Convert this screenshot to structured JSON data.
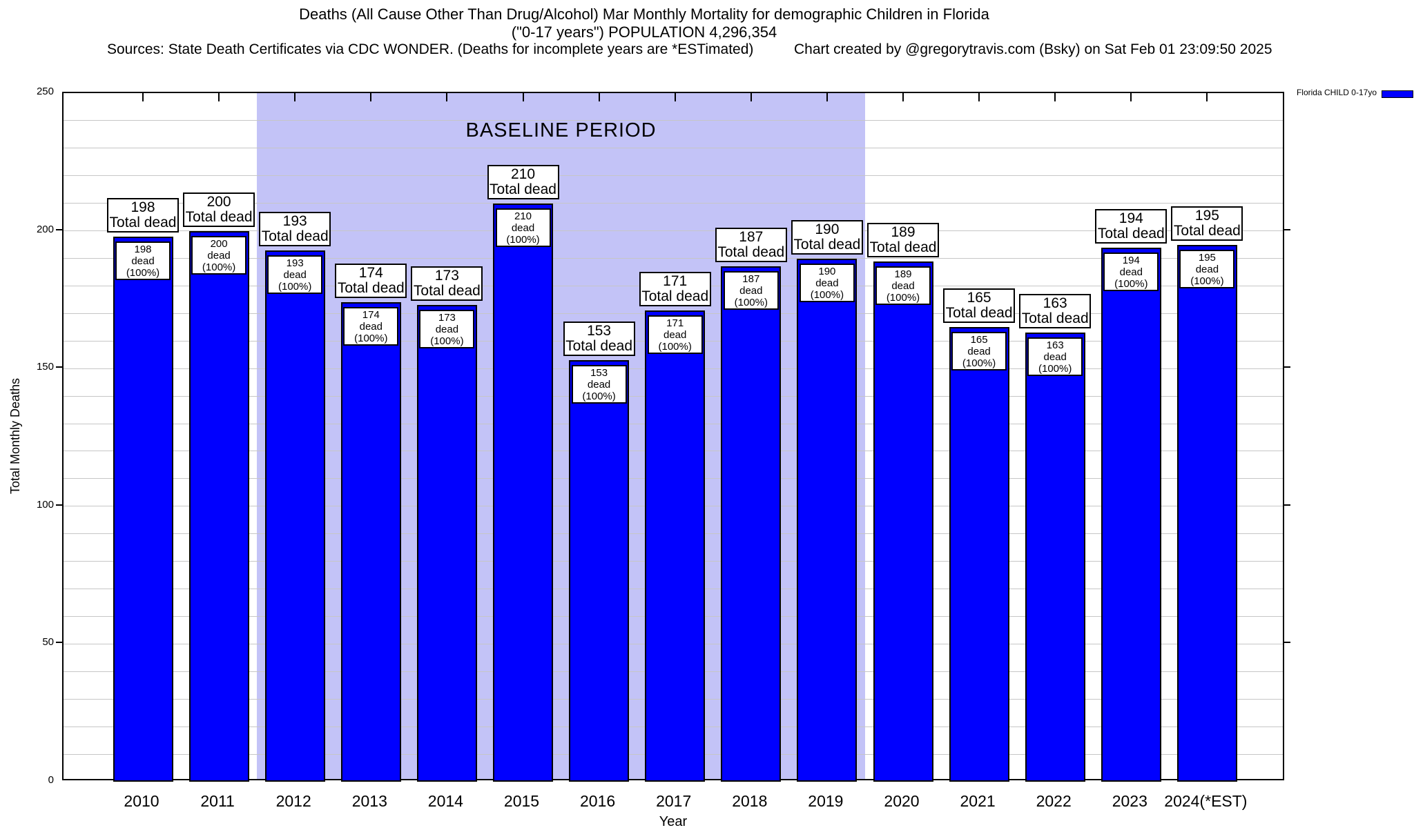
{
  "header": {
    "title_line1": "Deaths (All Cause Other Than Drug/Alcohol) Mar Monthly Mortality for demographic Children in Florida",
    "title_line2": "(\"0-17 years\") POPULATION 4,296,354",
    "sources": "Sources: State Death Certificates via CDC WONDER. (Deaths for incomplete years are *ESTimated)",
    "credit": "Chart created by @gregorytravis.com (Bsky) on Sat Feb 01 23:09:50 2025"
  },
  "legend": {
    "label": "Florida CHILD 0-17yo",
    "swatch_color": "#0000ff",
    "position": "outside-top-right"
  },
  "chart_data": {
    "type": "bar",
    "title": "Deaths (All Cause Other Than Drug/Alcohol) Mar Monthly Mortality for demographic Children in Florida (\"0-17 years\") POPULATION 4,296,354",
    "xlabel": "Year",
    "ylabel": "Total Monthly Deaths",
    "ylim": [
      0,
      250
    ],
    "yticks_major": [
      0,
      50,
      100,
      150,
      200,
      250
    ],
    "ytick_minor_step": 10,
    "grid": true,
    "categories": [
      "2010",
      "2011",
      "2012",
      "2013",
      "2014",
      "2015",
      "2016",
      "2017",
      "2018",
      "2019",
      "2020",
      "2021",
      "2022",
      "2023",
      "2024(*EST)"
    ],
    "series": [
      {
        "name": "Florida CHILD 0-17yo",
        "values": [
          198,
          200,
          193,
          174,
          173,
          210,
          153,
          171,
          187,
          190,
          189,
          165,
          163,
          194,
          195
        ]
      }
    ],
    "bar_color": "#0000ff",
    "bar_border_color": "#000000",
    "annotation_top_suffix": "Total dead",
    "annotation_inner_suffix": "dead (100%)",
    "baseline_band": {
      "label": "BASELINE PERIOD",
      "from_category": "2012",
      "to_category": "2019",
      "color": "#c3c3f7"
    },
    "gridline_color": "#c6c6c6"
  }
}
